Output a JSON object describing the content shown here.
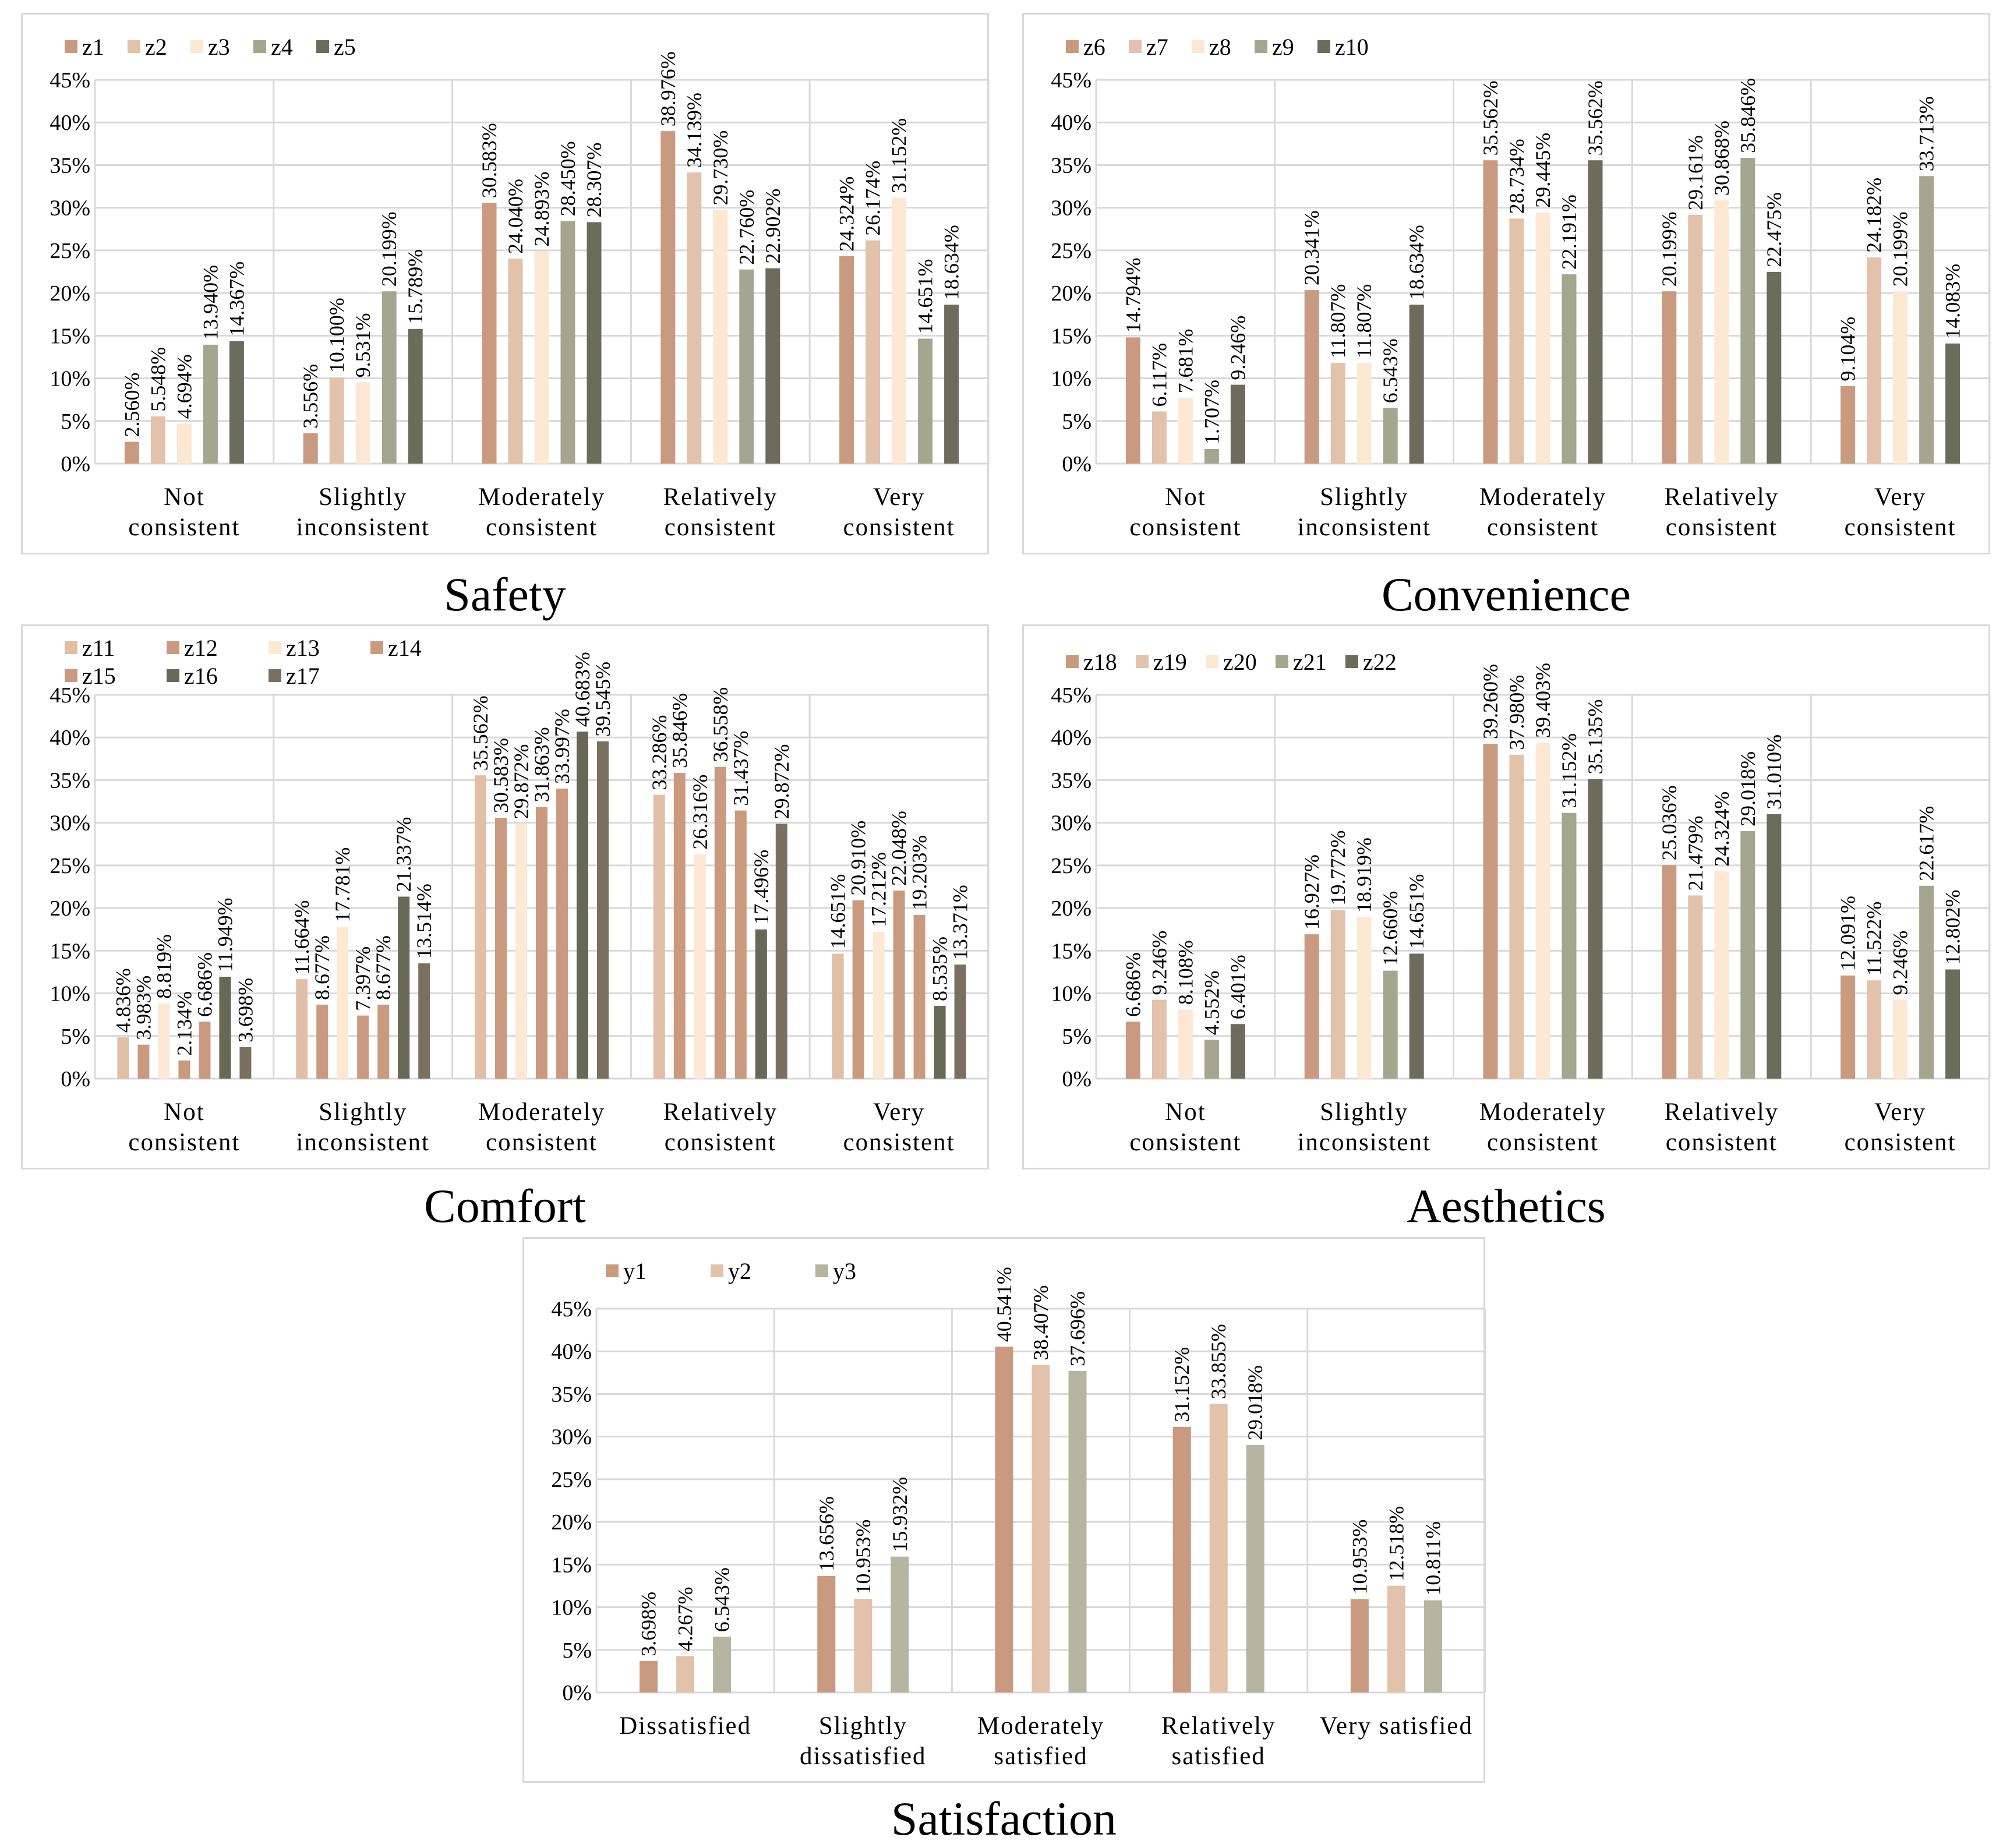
{
  "colors": {
    "c1": "#c99a7f",
    "c2": "#e2c2aa",
    "c3": "#fde8d4",
    "c4": "#a5a68f",
    "c5": "#6c6c5c",
    "d1": "#c99a7f",
    "d2": "#e0bfa6",
    "d3": "#fde8d4",
    "d4": "#c99a7f",
    "d5": "#c99a7f",
    "d6": "#676956",
    "d7": "#7a7060",
    "s3": "#b5b5a2",
    "grid": "#d9d9d9",
    "axis": "#bfbfbf"
  },
  "chart_data": [
    {
      "id": "safety",
      "type": "bar",
      "caption": "Safety",
      "ylim": [
        0,
        45
      ],
      "yticks": [
        "0%",
        "5%",
        "10%",
        "15%",
        "20%",
        "25%",
        "30%",
        "35%",
        "40%",
        "45%"
      ],
      "categories": [
        [
          "Not",
          "consistent"
        ],
        [
          "Slightly",
          "inconsistent"
        ],
        [
          "Moderately",
          "consistent"
        ],
        [
          "Relatively",
          "consistent"
        ],
        [
          "Very",
          "consistent"
        ]
      ],
      "series": [
        {
          "name": "z1",
          "color": "#c99a7f",
          "values": [
            2.56,
            3.556,
            30.583,
            38.976,
            24.324
          ],
          "labels": [
            "2.560%",
            "3.556%",
            "30.583%",
            "38.976%",
            "24.324%"
          ]
        },
        {
          "name": "z2",
          "color": "#e2c2aa",
          "values": [
            5.548,
            10.1,
            24.04,
            34.139,
            26.174
          ],
          "labels": [
            "5.548%",
            "10.100%",
            "24.040%",
            "34.139%",
            "26.174%"
          ]
        },
        {
          "name": "z3",
          "color": "#fde8d4",
          "values": [
            4.694,
            9.531,
            24.893,
            29.73,
            31.152
          ],
          "labels": [
            "4.694%",
            "9.531%",
            "24.893%",
            "29.730%",
            "31.152%"
          ]
        },
        {
          "name": "z4",
          "color": "#a5a68f",
          "values": [
            13.94,
            20.199,
            28.45,
            22.76,
            14.651
          ],
          "labels": [
            "13.940%",
            "20.199%",
            "28.450%",
            "22.760%",
            "14.651%"
          ]
        },
        {
          "name": "z5",
          "color": "#6c6c5c",
          "values": [
            14.367,
            15.789,
            28.307,
            22.902,
            18.634
          ],
          "labels": [
            "14.367%",
            "15.789%",
            "28.307%",
            "22.902%",
            "18.634%"
          ]
        }
      ]
    },
    {
      "id": "convenience",
      "type": "bar",
      "caption": "Convenience",
      "ylim": [
        0,
        45
      ],
      "yticks": [
        "0%",
        "5%",
        "10%",
        "15%",
        "20%",
        "25%",
        "30%",
        "35%",
        "40%",
        "45%"
      ],
      "categories": [
        [
          "Not",
          "consistent"
        ],
        [
          "Slightly",
          "inconsistent"
        ],
        [
          "Moderately",
          "consistent"
        ],
        [
          "Relatively",
          "consistent"
        ],
        [
          "Very",
          "consistent"
        ]
      ],
      "series": [
        {
          "name": "z6",
          "color": "#c99a7f",
          "values": [
            14.794,
            20.341,
            35.562,
            20.199,
            9.104
          ],
          "labels": [
            "14.794%",
            "20.341%",
            "35.562%",
            "20.199%",
            "9.104%"
          ]
        },
        {
          "name": "z7",
          "color": "#e2c2aa",
          "values": [
            6.117,
            11.807,
            28.734,
            29.161,
            24.182
          ],
          "labels": [
            "6.117%",
            "11.807%",
            "28.734%",
            "29.161%",
            "24.182%"
          ]
        },
        {
          "name": "z8",
          "color": "#fde8d4",
          "values": [
            7.681,
            11.807,
            29.445,
            30.868,
            20.199
          ],
          "labels": [
            "7.681%",
            "11.807%",
            "29.445%",
            "30.868%",
            "20.199%"
          ]
        },
        {
          "name": "z9",
          "color": "#a5a68f",
          "values": [
            1.707,
            6.543,
            22.191,
            35.846,
            33.713
          ],
          "labels": [
            "1.707%",
            "6.543%",
            "22.191%",
            "35.846%",
            "33.713%"
          ]
        },
        {
          "name": "z10",
          "color": "#6c6c5c",
          "values": [
            9.246,
            18.634,
            35.562,
            22.475,
            14.083
          ],
          "labels": [
            "9.246%",
            "18.634%",
            "35.562%",
            "22.475%",
            "14.083%"
          ]
        }
      ]
    },
    {
      "id": "comfort",
      "type": "bar",
      "caption": "Comfort",
      "ylim": [
        0,
        45
      ],
      "yticks": [
        "0%",
        "5%",
        "10%",
        "15%",
        "20%",
        "25%",
        "30%",
        "35%",
        "40%",
        "45%"
      ],
      "categories": [
        [
          "Not",
          "consistent"
        ],
        [
          "Slightly",
          "inconsistent"
        ],
        [
          "Moderately",
          "consistent"
        ],
        [
          "Relatively",
          "consistent"
        ],
        [
          "Very",
          "consistent"
        ]
      ],
      "series": [
        {
          "name": "z11",
          "color": "#e0bfa6",
          "values": [
            4.836,
            11.664,
            35.562,
            33.286,
            14.651
          ],
          "labels": [
            "4.836%",
            "11.664%",
            "35.562%",
            "33.286%",
            "14.651%"
          ]
        },
        {
          "name": "z12",
          "color": "#c99a7f",
          "values": [
            3.983,
            8.677,
            30.583,
            35.846,
            20.91
          ],
          "labels": [
            "3.983%",
            "8.677%",
            "30.583%",
            "35.846%",
            "20.910%"
          ]
        },
        {
          "name": "z13",
          "color": "#fde8d4",
          "values": [
            8.819,
            17.781,
            29.872,
            26.316,
            17.212
          ],
          "labels": [
            "8.819%",
            "17.781%",
            "29.872%",
            "26.316%",
            "17.212%"
          ]
        },
        {
          "name": "z14",
          "color": "#c99a7f",
          "values": [
            2.134,
            7.397,
            31.863,
            36.558,
            22.048
          ],
          "labels": [
            "2.134%",
            "7.397%",
            "31.863%",
            "36.558%",
            "22.048%"
          ]
        },
        {
          "name": "z15",
          "color": "#c99a7f",
          "values": [
            6.686,
            8.677,
            33.997,
            31.437,
            19.203
          ],
          "labels": [
            "6.686%",
            "8.677%",
            "33.997%",
            "31.437%",
            "19.203%"
          ]
        },
        {
          "name": "z16",
          "color": "#676956",
          "values": [
            11.949,
            21.337,
            40.683,
            17.496,
            8.535
          ],
          "labels": [
            "11.949%",
            "21.337%",
            "40.683%",
            "17.496%",
            "8.535%"
          ]
        },
        {
          "name": "z17",
          "color": "#7a7060",
          "values": [
            3.698,
            13.514,
            39.545,
            29.872,
            13.371
          ],
          "labels": [
            "3.698%",
            "13.514%",
            "39.545%",
            "29.872%",
            "13.371%"
          ]
        }
      ]
    },
    {
      "id": "aesthetics",
      "type": "bar",
      "caption": "Aesthetics",
      "ylim": [
        0,
        45
      ],
      "yticks": [
        "0%",
        "5%",
        "10%",
        "15%",
        "20%",
        "25%",
        "30%",
        "35%",
        "40%",
        "45%"
      ],
      "categories": [
        [
          "Not",
          "consistent"
        ],
        [
          "Slightly",
          "inconsistent"
        ],
        [
          "Moderately",
          "consistent"
        ],
        [
          "Relatively",
          "consistent"
        ],
        [
          "Very",
          "consistent"
        ]
      ],
      "series": [
        {
          "name": "z18",
          "color": "#c99a7f",
          "values": [
            6.686,
            16.927,
            39.26,
            25.036,
            12.091
          ],
          "labels": [
            "6.686%",
            "16.927%",
            "39.260%",
            "25.036%",
            "12.091%"
          ]
        },
        {
          "name": "z19",
          "color": "#e2c2aa",
          "values": [
            9.246,
            19.772,
            37.98,
            21.479,
            11.522
          ],
          "labels": [
            "9.246%",
            "19.772%",
            "37.980%",
            "21.479%",
            "11.522%"
          ]
        },
        {
          "name": "z20",
          "color": "#fde8d4",
          "values": [
            8.108,
            18.919,
            39.403,
            24.324,
            9.246
          ],
          "labels": [
            "8.108%",
            "18.919%",
            "39.403%",
            "24.324%",
            "9.246%"
          ]
        },
        {
          "name": "z21",
          "color": "#a5a68f",
          "values": [
            4.552,
            12.66,
            31.152,
            29.018,
            22.617
          ],
          "labels": [
            "4.552%",
            "12.660%",
            "31.152%",
            "29.018%",
            "22.617%"
          ]
        },
        {
          "name": "z22",
          "color": "#6c6c5c",
          "values": [
            6.401,
            14.651,
            35.135,
            31.01,
            12.802
          ],
          "labels": [
            "6.401%",
            "14.651%",
            "35.135%",
            "31.010%",
            "12.802%"
          ]
        }
      ]
    },
    {
      "id": "satisfaction",
      "type": "bar",
      "caption": "Satisfaction",
      "ylim": [
        0,
        45
      ],
      "yticks": [
        "0%",
        "5%",
        "10%",
        "15%",
        "20%",
        "25%",
        "30%",
        "35%",
        "40%",
        "45%"
      ],
      "categories": [
        [
          "Dissatisfied"
        ],
        [
          "Slightly",
          "dissatisfied"
        ],
        [
          "Moderately",
          "satisfied"
        ],
        [
          "Relatively",
          "satisfied"
        ],
        [
          "Very  satisfied"
        ]
      ],
      "series": [
        {
          "name": "y1",
          "color": "#c99a7f",
          "values": [
            3.698,
            13.656,
            40.541,
            31.152,
            10.953
          ],
          "labels": [
            "3.698%",
            "13.656%",
            "40.541%",
            "31.152%",
            "10.953%"
          ]
        },
        {
          "name": "y2",
          "color": "#e2c2aa",
          "values": [
            4.267,
            10.953,
            38.407,
            33.855,
            12.518
          ],
          "labels": [
            "4.267%",
            "10.953%",
            "38.407%",
            "33.855%",
            "12.518%"
          ]
        },
        {
          "name": "y3",
          "color": "#b5b5a2",
          "values": [
            6.543,
            15.932,
            37.696,
            29.018,
            10.811
          ],
          "labels": [
            "6.543%",
            "15.932%",
            "37.696%",
            "29.018%",
            "10.811%"
          ]
        }
      ]
    }
  ]
}
